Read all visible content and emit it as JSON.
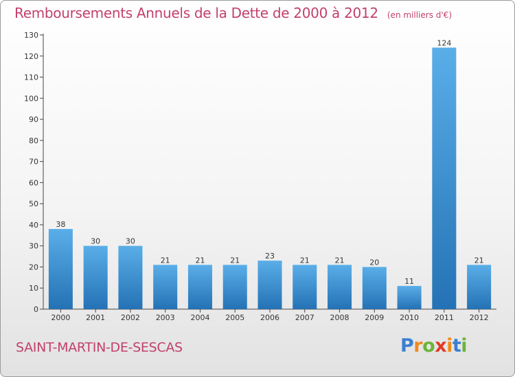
{
  "title": "Remboursements Annuels de la Dette de 2000 à 2012",
  "unit": "(en milliers d'€)",
  "town": "SAINT-MARTIN-DE-SESCAS",
  "logo": {
    "letters": [
      "P",
      "r",
      "o",
      "x",
      "i",
      "t",
      "i"
    ],
    "colors": [
      "#3a7fd1",
      "#f08a1c",
      "#6cb43a",
      "#e23a2a",
      "#f08a1c",
      "#3a7fd1",
      "#6cb43a"
    ]
  },
  "colors": {
    "accent": "#c2406d",
    "bar_top": "#5aaee8",
    "bar_bottom": "#2472b5"
  },
  "chart_data": {
    "type": "bar",
    "categories": [
      "2000",
      "2001",
      "2002",
      "2003",
      "2004",
      "2005",
      "2006",
      "2007",
      "2008",
      "2009",
      "2010",
      "2011",
      "2012"
    ],
    "values": [
      38,
      30,
      30,
      21,
      21,
      21,
      23,
      21,
      21,
      20,
      11,
      124,
      21
    ],
    "ylim": [
      0,
      130
    ],
    "yticks": [
      0,
      10,
      20,
      30,
      40,
      50,
      60,
      70,
      80,
      90,
      100,
      110,
      120,
      130
    ],
    "grid": false
  }
}
